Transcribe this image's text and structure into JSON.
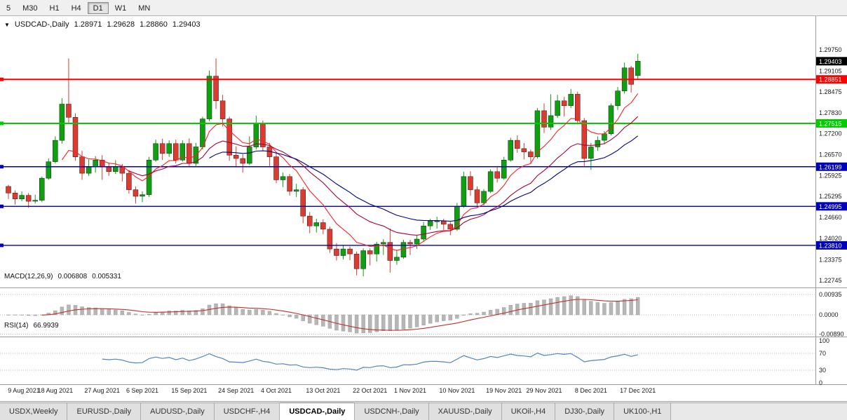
{
  "toolbar": {
    "timeframes": [
      "5",
      "M30",
      "H1",
      "H4",
      "D1",
      "W1",
      "MN"
    ],
    "selected": "D1"
  },
  "chart_header": {
    "marker": "▼",
    "symbol": "USDCAD-,Daily",
    "open": "1.28971",
    "high": "1.29628",
    "low": "1.28860",
    "close": "1.29403"
  },
  "chart_data": {
    "type": "candlestick",
    "title": "USDCAD-,Daily",
    "symbol": "USDCAD",
    "timeframe": "Daily",
    "x_range": [
      "9 Aug 2021",
      "17 Dec 2021"
    ],
    "y_axis_labels": [
      "1.29750",
      "1.29105",
      "1.28475",
      "1.27830",
      "1.27200",
      "1.26570",
      "1.25925",
      "1.25295",
      "1.24660",
      "1.24020",
      "1.23375",
      "1.22745"
    ],
    "x_labels": [
      {
        "text": "9 Aug 2021",
        "i": 0
      },
      {
        "text": "18 Aug 2021",
        "i": 7
      },
      {
        "text": "27 Aug 2021",
        "i": 14
      },
      {
        "text": "6 Sep 2021",
        "i": 20
      },
      {
        "text": "15 Sep 2021",
        "i": 27
      },
      {
        "text": "24 Sep 2021",
        "i": 34
      },
      {
        "text": "4 Oct 2021",
        "i": 40
      },
      {
        "text": "13 Oct 2021",
        "i": 47
      },
      {
        "text": "22 Oct 2021",
        "i": 54
      },
      {
        "text": "1 Nov 2021",
        "i": 60
      },
      {
        "text": "10 Nov 2021",
        "i": 67
      },
      {
        "text": "19 Nov 2021",
        "i": 74
      },
      {
        "text": "29 Nov 2021",
        "i": 80
      },
      {
        "text": "8 Dec 2021",
        "i": 87
      },
      {
        "text": "17 Dec 2021",
        "i": 94
      }
    ],
    "hlines": [
      {
        "price": 1.28851,
        "label": "1.28851",
        "color": "#ff0000",
        "width": 2
      },
      {
        "price": 1.27515,
        "label": "1.27515",
        "color": "#00cc00",
        "width": 2
      },
      {
        "price": 1.26199,
        "label": "1.26199",
        "color": "#0000bb",
        "width": 1.4
      },
      {
        "price": 1.24995,
        "label": "1.24995",
        "color": "#0000bb",
        "width": 1.4
      },
      {
        "price": 1.2381,
        "label": "1.23810",
        "color": "#0000bb",
        "width": 1.4
      }
    ],
    "current_price": {
      "value": 1.29403,
      "label": "1.29403",
      "bg": "#000000"
    },
    "moving_averages": [
      {
        "period": 8,
        "color": "#ff2222"
      },
      {
        "period": 18,
        "color": "#aa0033"
      },
      {
        "period": 30,
        "color": "#000088"
      }
    ],
    "colors": {
      "up": "#0ea00e",
      "down": "#dd3b2f",
      "histogram": "#b6b6b6",
      "macd_signal": "#c03030",
      "rsi_line": "#4f86c0",
      "grid_dotted": "#b8b8b8"
    },
    "candles": [
      [
        1.256,
        1.2565,
        1.2522,
        1.254
      ],
      [
        1.254,
        1.2548,
        1.2505,
        1.2522
      ],
      [
        1.2522,
        1.2545,
        1.2515,
        1.2533
      ],
      [
        1.2533,
        1.254,
        1.2495,
        1.2515
      ],
      [
        1.2515,
        1.2535,
        1.2508,
        1.2518
      ],
      [
        1.2518,
        1.259,
        1.2512,
        1.2585
      ],
      [
        1.2585,
        1.2645,
        1.258,
        1.2635
      ],
      [
        1.2635,
        1.2712,
        1.263,
        1.27
      ],
      [
        1.27,
        1.2828,
        1.269,
        1.281
      ],
      [
        1.281,
        1.2949,
        1.275,
        1.277
      ],
      [
        1.277,
        1.2782,
        1.2638,
        1.265
      ],
      [
        1.265,
        1.2668,
        1.258,
        1.26
      ],
      [
        1.26,
        1.2642,
        1.2592,
        1.262
      ],
      [
        1.262,
        1.2652,
        1.2602,
        1.264
      ],
      [
        1.264,
        1.2655,
        1.258,
        1.262
      ],
      [
        1.262,
        1.2632,
        1.2592,
        1.2605
      ],
      [
        1.2605,
        1.264,
        1.2598,
        1.262
      ],
      [
        1.262,
        1.2628,
        1.2575,
        1.26
      ],
      [
        1.26,
        1.261,
        1.2538,
        1.255
      ],
      [
        1.255,
        1.256,
        1.2508,
        1.253
      ],
      [
        1.253,
        1.2545,
        1.2512,
        1.2535
      ],
      [
        1.2535,
        1.265,
        1.2528,
        1.264
      ],
      [
        1.264,
        1.2702,
        1.2635,
        1.269
      ],
      [
        1.269,
        1.2705,
        1.264,
        1.266
      ],
      [
        1.266,
        1.27,
        1.265,
        1.269
      ],
      [
        1.269,
        1.2702,
        1.263,
        1.264
      ],
      [
        1.264,
        1.27,
        1.2635,
        1.269
      ],
      [
        1.269,
        1.2706,
        1.262,
        1.263
      ],
      [
        1.263,
        1.2692,
        1.2622,
        1.268
      ],
      [
        1.268,
        1.2772,
        1.2672,
        1.2765
      ],
      [
        1.2765,
        1.2912,
        1.2758,
        1.2895
      ],
      [
        1.2895,
        1.2949,
        1.2795,
        1.282
      ],
      [
        1.282,
        1.2838,
        1.2742,
        1.2765
      ],
      [
        1.2765,
        1.2772,
        1.2638,
        1.2655
      ],
      [
        1.2655,
        1.2682,
        1.2618,
        1.2645
      ],
      [
        1.2645,
        1.2658,
        1.2602,
        1.263
      ],
      [
        1.263,
        1.2712,
        1.2625,
        1.268
      ],
      [
        1.268,
        1.2775,
        1.2672,
        1.275
      ],
      [
        1.275,
        1.276,
        1.2668,
        1.268
      ],
      [
        1.268,
        1.2692,
        1.2622,
        1.265
      ],
      [
        1.265,
        1.2662,
        1.257,
        1.258
      ],
      [
        1.258,
        1.2602,
        1.2558,
        1.259
      ],
      [
        1.259,
        1.2598,
        1.2532,
        1.2545
      ],
      [
        1.2545,
        1.2568,
        1.2528,
        1.255
      ],
      [
        1.255,
        1.2558,
        1.2448,
        1.247
      ],
      [
        1.247,
        1.2482,
        1.2418,
        1.244
      ],
      [
        1.244,
        1.2462,
        1.242,
        1.245
      ],
      [
        1.245,
        1.246,
        1.2415,
        1.243
      ],
      [
        1.243,
        1.2438,
        1.2358,
        1.237
      ],
      [
        1.237,
        1.2388,
        1.2335,
        1.235
      ],
      [
        1.235,
        1.2382,
        1.2338,
        1.237
      ],
      [
        1.237,
        1.2378,
        1.2336,
        1.2355
      ],
      [
        1.2355,
        1.2362,
        1.229,
        1.231
      ],
      [
        1.231,
        1.2372,
        1.2287,
        1.2365
      ],
      [
        1.2365,
        1.2372,
        1.232,
        1.2355
      ],
      [
        1.2355,
        1.2392,
        1.2332,
        1.2385
      ],
      [
        1.2385,
        1.24,
        1.2352,
        1.239
      ],
      [
        1.239,
        1.2432,
        1.2298,
        1.2335
      ],
      [
        1.2335,
        1.2368,
        1.2322,
        1.2345
      ],
      [
        1.2345,
        1.2398,
        1.234,
        1.239
      ],
      [
        1.239,
        1.2398,
        1.2352,
        1.2385
      ],
      [
        1.2385,
        1.2412,
        1.237,
        1.24
      ],
      [
        1.24,
        1.2452,
        1.2392,
        1.244
      ],
      [
        1.244,
        1.2462,
        1.2428,
        1.2455
      ],
      [
        1.2455,
        1.2468,
        1.2432,
        1.2455
      ],
      [
        1.2455,
        1.2462,
        1.2428,
        1.2445
      ],
      [
        1.2445,
        1.2452,
        1.2412,
        1.243
      ],
      [
        1.243,
        1.251,
        1.2425,
        1.25
      ],
      [
        1.25,
        1.2605,
        1.2495,
        1.259
      ],
      [
        1.259,
        1.2606,
        1.2532,
        1.255
      ],
      [
        1.255,
        1.256,
        1.2495,
        1.251
      ],
      [
        1.251,
        1.2552,
        1.2502,
        1.2545
      ],
      [
        1.2545,
        1.2612,
        1.254,
        1.2605
      ],
      [
        1.2605,
        1.2618,
        1.2572,
        1.2585
      ],
      [
        1.2585,
        1.265,
        1.258,
        1.264
      ],
      [
        1.264,
        1.2708,
        1.2635,
        1.27
      ],
      [
        1.27,
        1.2715,
        1.2662,
        1.2675
      ],
      [
        1.2675,
        1.2692,
        1.2642,
        1.2665
      ],
      [
        1.2665,
        1.2672,
        1.2632,
        1.265
      ],
      [
        1.265,
        1.2798,
        1.2645,
        1.279
      ],
      [
        1.279,
        1.2812,
        1.2722,
        1.274
      ],
      [
        1.274,
        1.284,
        1.2732,
        1.2775
      ],
      [
        1.2775,
        1.2838,
        1.2768,
        1.282
      ],
      [
        1.282,
        1.2832,
        1.2772,
        1.2805
      ],
      [
        1.2805,
        1.2856,
        1.2798,
        1.284
      ],
      [
        1.284,
        1.2848,
        1.2748,
        1.276
      ],
      [
        1.276,
        1.2768,
        1.2622,
        1.2645
      ],
      [
        1.2645,
        1.2692,
        1.261,
        1.268
      ],
      [
        1.268,
        1.2712,
        1.2668,
        1.27
      ],
      [
        1.27,
        1.2728,
        1.2688,
        1.272
      ],
      [
        1.272,
        1.2812,
        1.2715,
        1.2805
      ],
      [
        1.2805,
        1.2862,
        1.2792,
        1.285
      ],
      [
        1.285,
        1.2936,
        1.2842,
        1.292
      ],
      [
        1.292,
        1.2926,
        1.2845,
        1.287
      ],
      [
        1.28971,
        1.29628,
        1.2886,
        1.29403
      ]
    ]
  },
  "macd_panel": {
    "title": "MACD(12,26,9)",
    "value1": "0.006808",
    "value2": "0.005331",
    "axis": [
      "0.00935",
      "0.0000",
      "-0.00890"
    ],
    "params": {
      "fast": 12,
      "slow": 26,
      "signal": 9
    }
  },
  "rsi_panel": {
    "title": "RSI(14)",
    "value": "66.9939",
    "axis": [
      "100",
      "70",
      "30",
      "0"
    ],
    "levels": [
      70,
      30
    ],
    "period": 14
  },
  "tabs": {
    "items": [
      "USDX,Weekly",
      "EURUSD-,Daily",
      "AUDUSD-,Daily",
      "USDCHF-,H4",
      "USDCAD-,Daily",
      "USDCNH-,Daily",
      "XAUUSD-,Daily",
      "UKOil-,H4",
      "DJ30-,Daily",
      "UK100-,H1"
    ],
    "selected": "USDCAD-,Daily"
  }
}
